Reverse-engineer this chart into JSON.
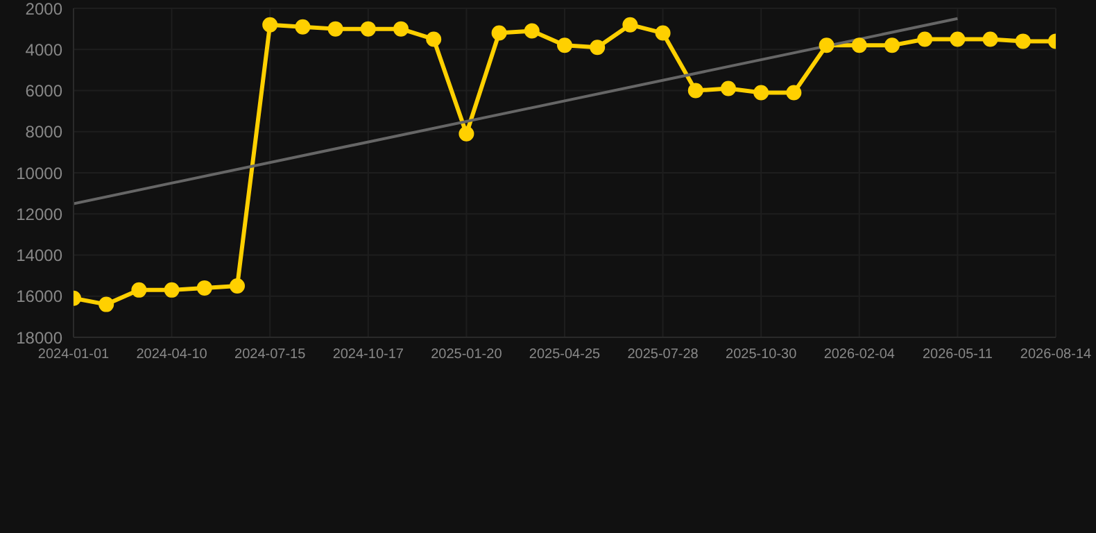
{
  "chart_data": {
    "type": "line",
    "categories": [
      "2024-01-01",
      null,
      null,
      "2024-04-10",
      null,
      null,
      "2024-07-15",
      null,
      null,
      "2024-10-17",
      null,
      null,
      "2025-01-20",
      null,
      null,
      "2025-04-25",
      null,
      null,
      "2025-07-28",
      null,
      null,
      "2025-10-30",
      null,
      null,
      "2026-02-04",
      null,
      null,
      "2026-05-11",
      null,
      null,
      "2026-08-14"
    ],
    "series": [
      {
        "color": "#ffd000",
        "marker": "circle",
        "values": [
          16100,
          16400,
          15700,
          15700,
          15600,
          15500,
          2800,
          2900,
          3000,
          3000,
          3000,
          3500,
          8100,
          3200,
          3100,
          3800,
          3900,
          2800,
          3200,
          6000,
          5900,
          6100,
          6100,
          3800,
          3800,
          3800,
          3500,
          3500,
          3500,
          3600,
          3600
        ]
      },
      {
        "type": "line",
        "color": "#666666",
        "marker": "none",
        "values": [
          11500,
          null,
          null,
          null,
          null,
          null,
          null,
          null,
          null,
          null,
          null,
          null,
          null,
          null,
          null,
          null,
          null,
          null,
          null,
          null,
          null,
          null,
          null,
          null,
          null,
          null,
          null,
          2500,
          null,
          null,
          null
        ]
      }
    ],
    "ylim": [
      18000,
      2000
    ],
    "yticks": [
      2000,
      4000,
      6000,
      8000,
      10000,
      12000,
      14000,
      16000,
      18000
    ],
    "grid": true
  }
}
